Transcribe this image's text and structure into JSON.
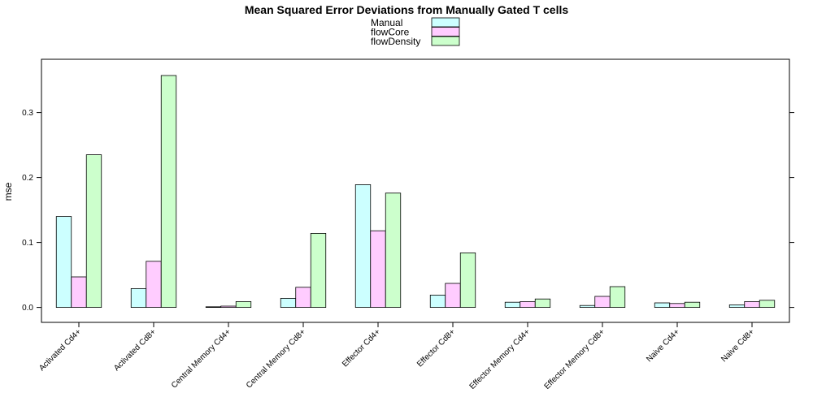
{
  "chart_data": {
    "type": "bar",
    "title": "Mean Squared Error Deviations from Manually Gated T cells",
    "xlabel": "",
    "ylabel": "mse",
    "ylim": [
      -0.023,
      0.382
    ],
    "yticks": [
      "0.0",
      "0.1",
      "0.2",
      "0.3"
    ],
    "ytick_values": [
      0.0,
      0.1,
      0.2,
      0.3
    ],
    "grid": false,
    "legend_position": "top-center",
    "categories": [
      "Activated Cd4+",
      "Activated Cd8+",
      "Central Memory Cd4+",
      "Central Memory Cd8+",
      "Effector Cd4+",
      "Effector Cd8+",
      "Effector Memory Cd4+",
      "Effector Memory Cd8+",
      "Naive Cd4+",
      "Naive Cd8+"
    ],
    "series": [
      {
        "name": "Manual",
        "color": "#ccffff",
        "values": [
          0.14,
          0.029,
          0.001,
          0.014,
          0.189,
          0.019,
          0.008,
          0.003,
          0.007,
          0.004
        ]
      },
      {
        "name": "flowCore",
        "color": "#ffccff",
        "values": [
          0.047,
          0.071,
          0.002,
          0.031,
          0.118,
          0.037,
          0.009,
          0.017,
          0.006,
          0.009
        ]
      },
      {
        "name": "flowDensity",
        "color": "#ccffcc",
        "values": [
          0.235,
          0.357,
          0.009,
          0.114,
          0.176,
          0.084,
          0.013,
          0.032,
          0.008,
          0.011
        ]
      }
    ]
  }
}
